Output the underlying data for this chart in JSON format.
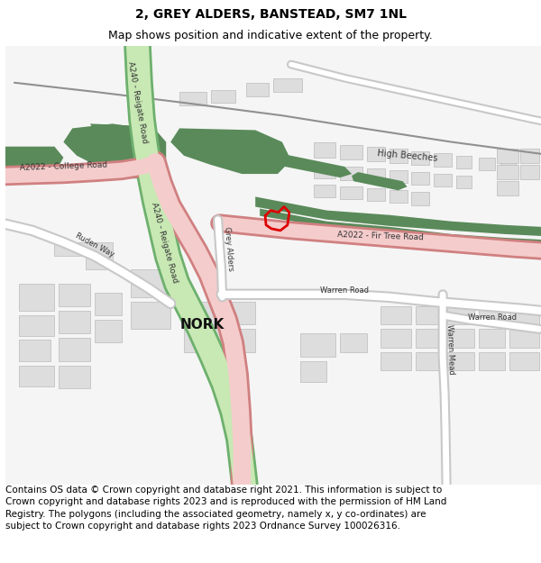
{
  "title_line1": "2, GREY ALDERS, BANSTEAD, SM7 1NL",
  "title_line2": "Map shows position and indicative extent of the property.",
  "footer_text": "Contains OS data © Crown copyright and database right 2021. This information is subject to Crown copyright and database rights 2023 and is reproduced with the permission of HM Land Registry. The polygons (including the associated geometry, namely x, y co-ordinates) are subject to Crown copyright and database rights 2023 Ordnance Survey 100026316.",
  "title_fontsize": 10,
  "subtitle_fontsize": 9,
  "footer_fontsize": 7.5,
  "bg_color": "#ffffff",
  "map_bg": "#f8f8f8",
  "border_color": "#aaaaaa",
  "road_major_color": "#c8e8b4",
  "road_major_border": "#6db06d",
  "road_a_color": "#f5cccc",
  "road_a_border": "#d08080",
  "road_minor_color": "#ffffff",
  "road_minor_border": "#c8c8c8",
  "green_area_color": "#5a8a5a",
  "building_color": "#dddddd",
  "building_border": "#bbbbbb",
  "plot_color": "#dd0000",
  "figwidth": 6.0,
  "figheight": 6.25,
  "dpi": 100
}
